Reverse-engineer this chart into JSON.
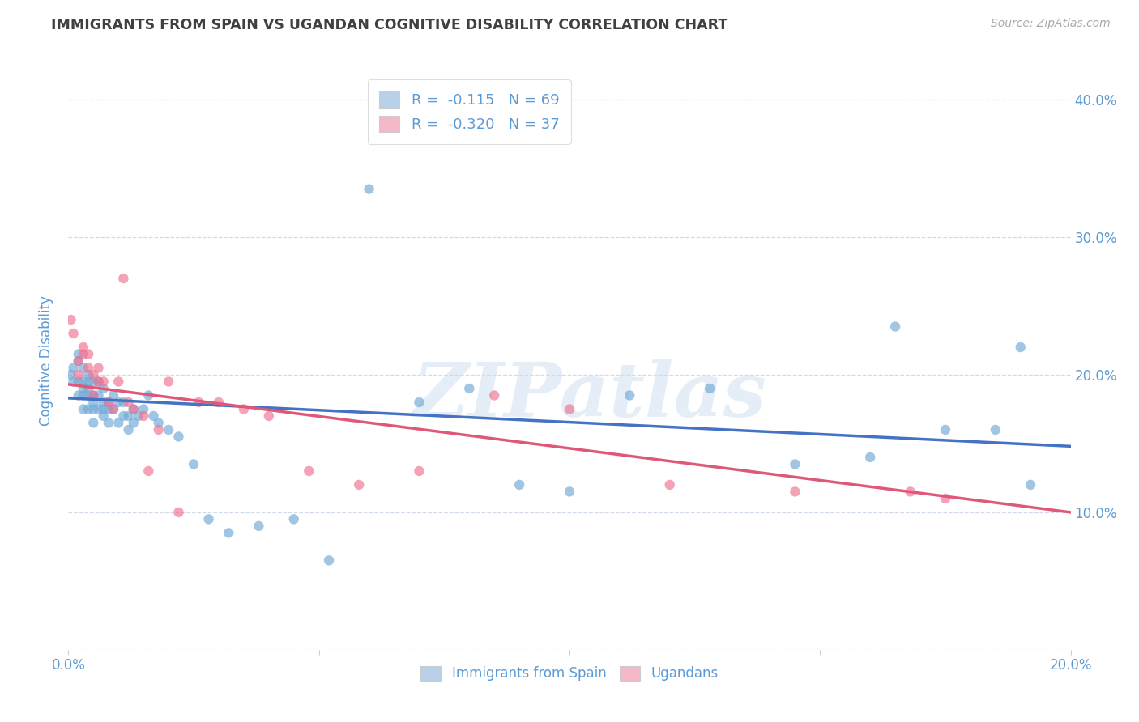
{
  "title": "IMMIGRANTS FROM SPAIN VS UGANDAN COGNITIVE DISABILITY CORRELATION CHART",
  "source": "Source: ZipAtlas.com",
  "ylabel": "Cognitive Disability",
  "watermark": "ZIPatlas",
  "legend1_r": "-0.115",
  "legend1_n": "69",
  "legend2_r": "-0.320",
  "legend2_n": "37",
  "blue_color": "#b8d0e8",
  "pink_color": "#f4b8c8",
  "blue_line_color": "#4472c4",
  "pink_line_color": "#e05878",
  "blue_dot_color": "#6fa8d6",
  "pink_dot_color": "#f07090",
  "axis_color": "#5b9bd5",
  "grid_color": "#d0dae8",
  "title_color": "#404040",
  "source_color": "#aaaaaa",
  "blue_scatter_x": [
    0.0005,
    0.001,
    0.001,
    0.002,
    0.002,
    0.002,
    0.002,
    0.003,
    0.003,
    0.003,
    0.003,
    0.003,
    0.004,
    0.004,
    0.004,
    0.004,
    0.004,
    0.005,
    0.005,
    0.005,
    0.005,
    0.005,
    0.006,
    0.006,
    0.006,
    0.007,
    0.007,
    0.007,
    0.007,
    0.008,
    0.008,
    0.008,
    0.009,
    0.009,
    0.01,
    0.01,
    0.011,
    0.011,
    0.012,
    0.012,
    0.013,
    0.013,
    0.014,
    0.015,
    0.016,
    0.017,
    0.018,
    0.02,
    0.022,
    0.025,
    0.028,
    0.032,
    0.038,
    0.045,
    0.052,
    0.06,
    0.07,
    0.08,
    0.09,
    0.1,
    0.112,
    0.128,
    0.145,
    0.16,
    0.175,
    0.185,
    0.19,
    0.165,
    0.192
  ],
  "blue_scatter_y": [
    0.2,
    0.195,
    0.205,
    0.21,
    0.195,
    0.185,
    0.215,
    0.205,
    0.195,
    0.19,
    0.185,
    0.175,
    0.2,
    0.195,
    0.185,
    0.175,
    0.19,
    0.185,
    0.195,
    0.18,
    0.175,
    0.165,
    0.195,
    0.185,
    0.175,
    0.19,
    0.18,
    0.175,
    0.17,
    0.175,
    0.18,
    0.165,
    0.185,
    0.175,
    0.18,
    0.165,
    0.18,
    0.17,
    0.17,
    0.16,
    0.175,
    0.165,
    0.17,
    0.175,
    0.185,
    0.17,
    0.165,
    0.16,
    0.155,
    0.135,
    0.095,
    0.085,
    0.09,
    0.095,
    0.065,
    0.335,
    0.18,
    0.19,
    0.12,
    0.115,
    0.185,
    0.19,
    0.135,
    0.14,
    0.16,
    0.16,
    0.22,
    0.235,
    0.12
  ],
  "pink_scatter_x": [
    0.0005,
    0.001,
    0.002,
    0.002,
    0.003,
    0.003,
    0.004,
    0.004,
    0.005,
    0.005,
    0.006,
    0.006,
    0.007,
    0.008,
    0.009,
    0.01,
    0.011,
    0.012,
    0.013,
    0.015,
    0.016,
    0.018,
    0.02,
    0.022,
    0.026,
    0.03,
    0.035,
    0.04,
    0.048,
    0.058,
    0.07,
    0.085,
    0.1,
    0.12,
    0.145,
    0.168,
    0.175
  ],
  "pink_scatter_y": [
    0.24,
    0.23,
    0.2,
    0.21,
    0.215,
    0.22,
    0.215,
    0.205,
    0.2,
    0.185,
    0.205,
    0.195,
    0.195,
    0.18,
    0.175,
    0.195,
    0.27,
    0.18,
    0.175,
    0.17,
    0.13,
    0.16,
    0.195,
    0.1,
    0.18,
    0.18,
    0.175,
    0.17,
    0.13,
    0.12,
    0.13,
    0.185,
    0.175,
    0.12,
    0.115,
    0.115,
    0.11
  ],
  "x_min": 0.0,
  "x_max": 0.2,
  "y_min": 0.0,
  "y_max": 0.42,
  "x_ticks": [
    0.0,
    0.05,
    0.1,
    0.15,
    0.2
  ],
  "x_tick_labels_left": [
    "0.0%",
    "",
    "",
    "",
    ""
  ],
  "x_tick_labels_right": [
    "",
    "",
    "",
    "",
    "20.0%"
  ],
  "y_ticks": [
    0.0,
    0.1,
    0.2,
    0.3,
    0.4
  ],
  "y_tick_labels_right": [
    "",
    "10.0%",
    "20.0%",
    "30.0%",
    "40.0%"
  ],
  "blue_line_x0": 0.0,
  "blue_line_x1": 0.2,
  "blue_line_y0": 0.183,
  "blue_line_y1": 0.148,
  "pink_line_x0": 0.0,
  "pink_line_x1": 0.2,
  "pink_line_y0": 0.193,
  "pink_line_y1": 0.1
}
